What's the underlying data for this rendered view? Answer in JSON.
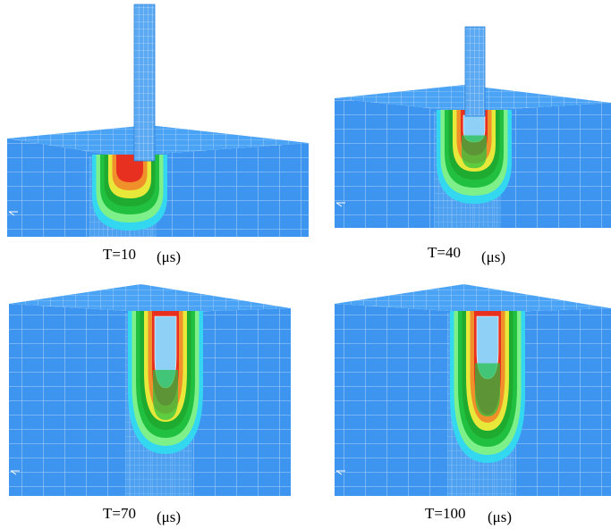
{
  "panels": [
    {
      "label": "T=10",
      "unit": "(μs)"
    },
    {
      "label": "T=40",
      "unit": "(μs)"
    },
    {
      "label": "T=70",
      "unit": "(μs)"
    },
    {
      "label": "T=100",
      "unit": "(μs)"
    }
  ]
}
